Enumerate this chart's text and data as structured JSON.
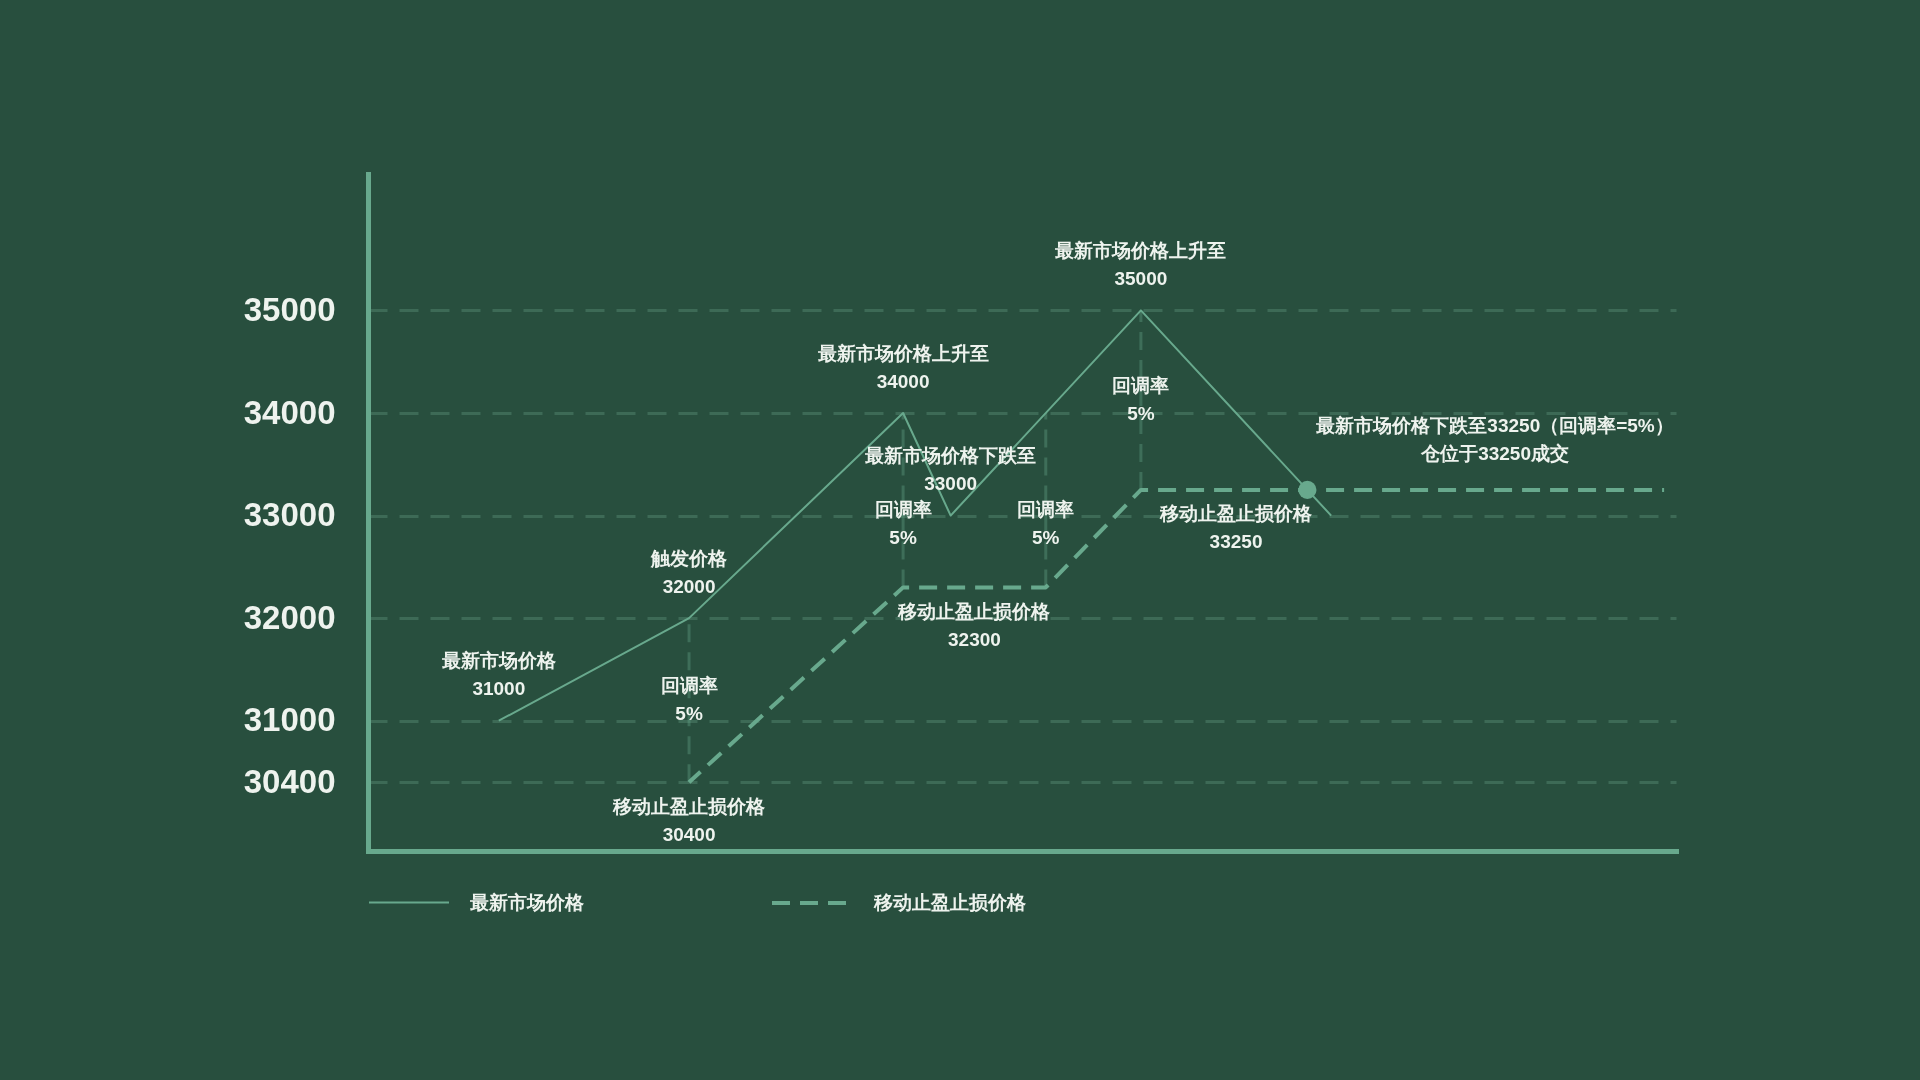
{
  "chart_data": {
    "type": "line",
    "categories": [
      null,
      null,
      null,
      null,
      null,
      null,
      null,
      null,
      null,
      null,
      null,
      null,
      null,
      null,
      null,
      null,
      null,
      null,
      null,
      null,
      null,
      null,
      null,
      null,
      null,
      null,
      null,
      null,
      null,
      null,
      null,
      null,
      null,
      null,
      null,
      null,
      null,
      null,
      null,
      null,
      null,
      null,
      null,
      null,
      null,
      null,
      null,
      null,
      null,
      null,
      null,
      null,
      null,
      null,
      null
    ],
    "ylim": [
      29730,
      36330
    ],
    "yticks": [
      30400,
      31000,
      32000,
      33000,
      34000,
      35000
    ],
    "tick_labels": "y",
    "grid": "y",
    "legend": "bottom",
    "series": [
      {
        "name": "最新市场价格",
        "color": "#68a98d",
        "line_style": "solid",
        "values": [
          null,
          null,
          null,
          null,
          null,
          31000,
          null,
          null,
          null,
          null,
          null,
          null,
          null,
          32000,
          null,
          null,
          null,
          null,
          null,
          null,
          null,
          null,
          34000,
          null,
          33000,
          null,
          null,
          null,
          null,
          null,
          null,
          null,
          35000,
          null,
          null,
          null,
          null,
          null,
          null,
          null,
          33000,
          null,
          null,
          null,
          null,
          null,
          null,
          null,
          null,
          null,
          null,
          null,
          null,
          null,
          null
        ],
        "value_labels": [
          null,
          null,
          null,
          null,
          null,
          "最新市场价格\n31000",
          null,
          null,
          null,
          null,
          null,
          null,
          null,
          "触发价格\n32000",
          null,
          null,
          null,
          null,
          null,
          null,
          null,
          null,
          "最新市场价格上升至\n34000",
          null,
          "最新市场价格下跌至\n33000",
          null,
          null,
          null,
          null,
          null,
          null,
          null,
          "最新市场价格上升至\n35000",
          null,
          null,
          null,
          null,
          null,
          null,
          null,
          null,
          null,
          null,
          null,
          null,
          null,
          null,
          null,
          null,
          null,
          null,
          null,
          null,
          null,
          null
        ]
      },
      {
        "name": "移动止盈止损价格",
        "color": "#68a98d",
        "line_style": "dashed",
        "values": [
          null,
          null,
          null,
          null,
          null,
          null,
          null,
          null,
          null,
          null,
          null,
          null,
          null,
          30400,
          null,
          null,
          null,
          null,
          null,
          null,
          null,
          null,
          32300,
          null,
          null,
          32300,
          null,
          null,
          32300,
          null,
          null,
          null,
          33250,
          null,
          null,
          null,
          33250,
          null,
          null,
          null,
          null,
          null,
          null,
          null,
          null,
          null,
          null,
          null,
          null,
          null,
          null,
          null,
          null,
          null,
          33250
        ],
        "errors": [
          null,
          null,
          null,
          null,
          null,
          null,
          null,
          null,
          null,
          null,
          null,
          null,
          null,
          [
            30400,
            32000
          ],
          null,
          null,
          null,
          null,
          null,
          null,
          null,
          null,
          [
            32300,
            34000
          ],
          null,
          null,
          null,
          null,
          null,
          [
            32300,
            34000
          ],
          null,
          null,
          null,
          [
            33250,
            35000
          ],
          null,
          null,
          null,
          null,
          null,
          null,
          null,
          null,
          null,
          null,
          null,
          null,
          null,
          null,
          null,
          null,
          null,
          null,
          null,
          null,
          null,
          null
        ],
        "value_labels": [
          null,
          null,
          null,
          null,
          null,
          null,
          null,
          null,
          null,
          null,
          null,
          null,
          null,
          "移动止盈止损价格\n30400",
          null,
          null,
          null,
          null,
          null,
          null,
          null,
          null,
          null,
          null,
          null,
          "移动止盈止损价格\n32300",
          null,
          null,
          null,
          null,
          null,
          null,
          null,
          null,
          null,
          null,
          "移动止盈止损价格\n33250",
          null,
          null,
          null,
          null,
          null,
          null,
          null,
          null,
          null,
          null,
          null,
          null,
          null,
          null,
          null,
          null,
          null,
          null
        ]
      },
      {
        "type": "scatter",
        "color": "#68a98d",
        "marker": "circle",
        "values": [
          null,
          null,
          null,
          null,
          null,
          null,
          null,
          null,
          null,
          null,
          null,
          null,
          null,
          null,
          null,
          null,
          null,
          null,
          null,
          null,
          null,
          null,
          null,
          null,
          null,
          null,
          null,
          null,
          null,
          null,
          null,
          null,
          null,
          null,
          null,
          null,
          null,
          null,
          null,
          33250,
          null,
          null,
          null,
          null,
          null,
          null,
          null,
          null,
          null,
          null,
          null,
          null,
          null,
          null,
          null
        ],
        "value_labels": [
          null,
          null,
          null,
          null,
          null,
          null,
          null,
          null,
          null,
          null,
          null,
          null,
          null,
          null,
          null,
          null,
          null,
          null,
          null,
          null,
          null,
          null,
          null,
          null,
          null,
          null,
          null,
          null,
          null,
          null,
          null,
          null,
          null,
          null,
          null,
          null,
          null,
          null,
          null,
          "最新市场价格下跌至33250（回调率=5%）仓位于33250成交",
          null,
          null,
          null,
          null,
          null,
          null,
          null,
          null,
          null,
          null,
          null,
          null,
          null,
          null,
          null
        ]
      }
    ],
    "annotations": [
      "回调率\n5%",
      "回调率\n5%",
      "回调率\n5%",
      "回调率\n5%"
    ]
  }
}
